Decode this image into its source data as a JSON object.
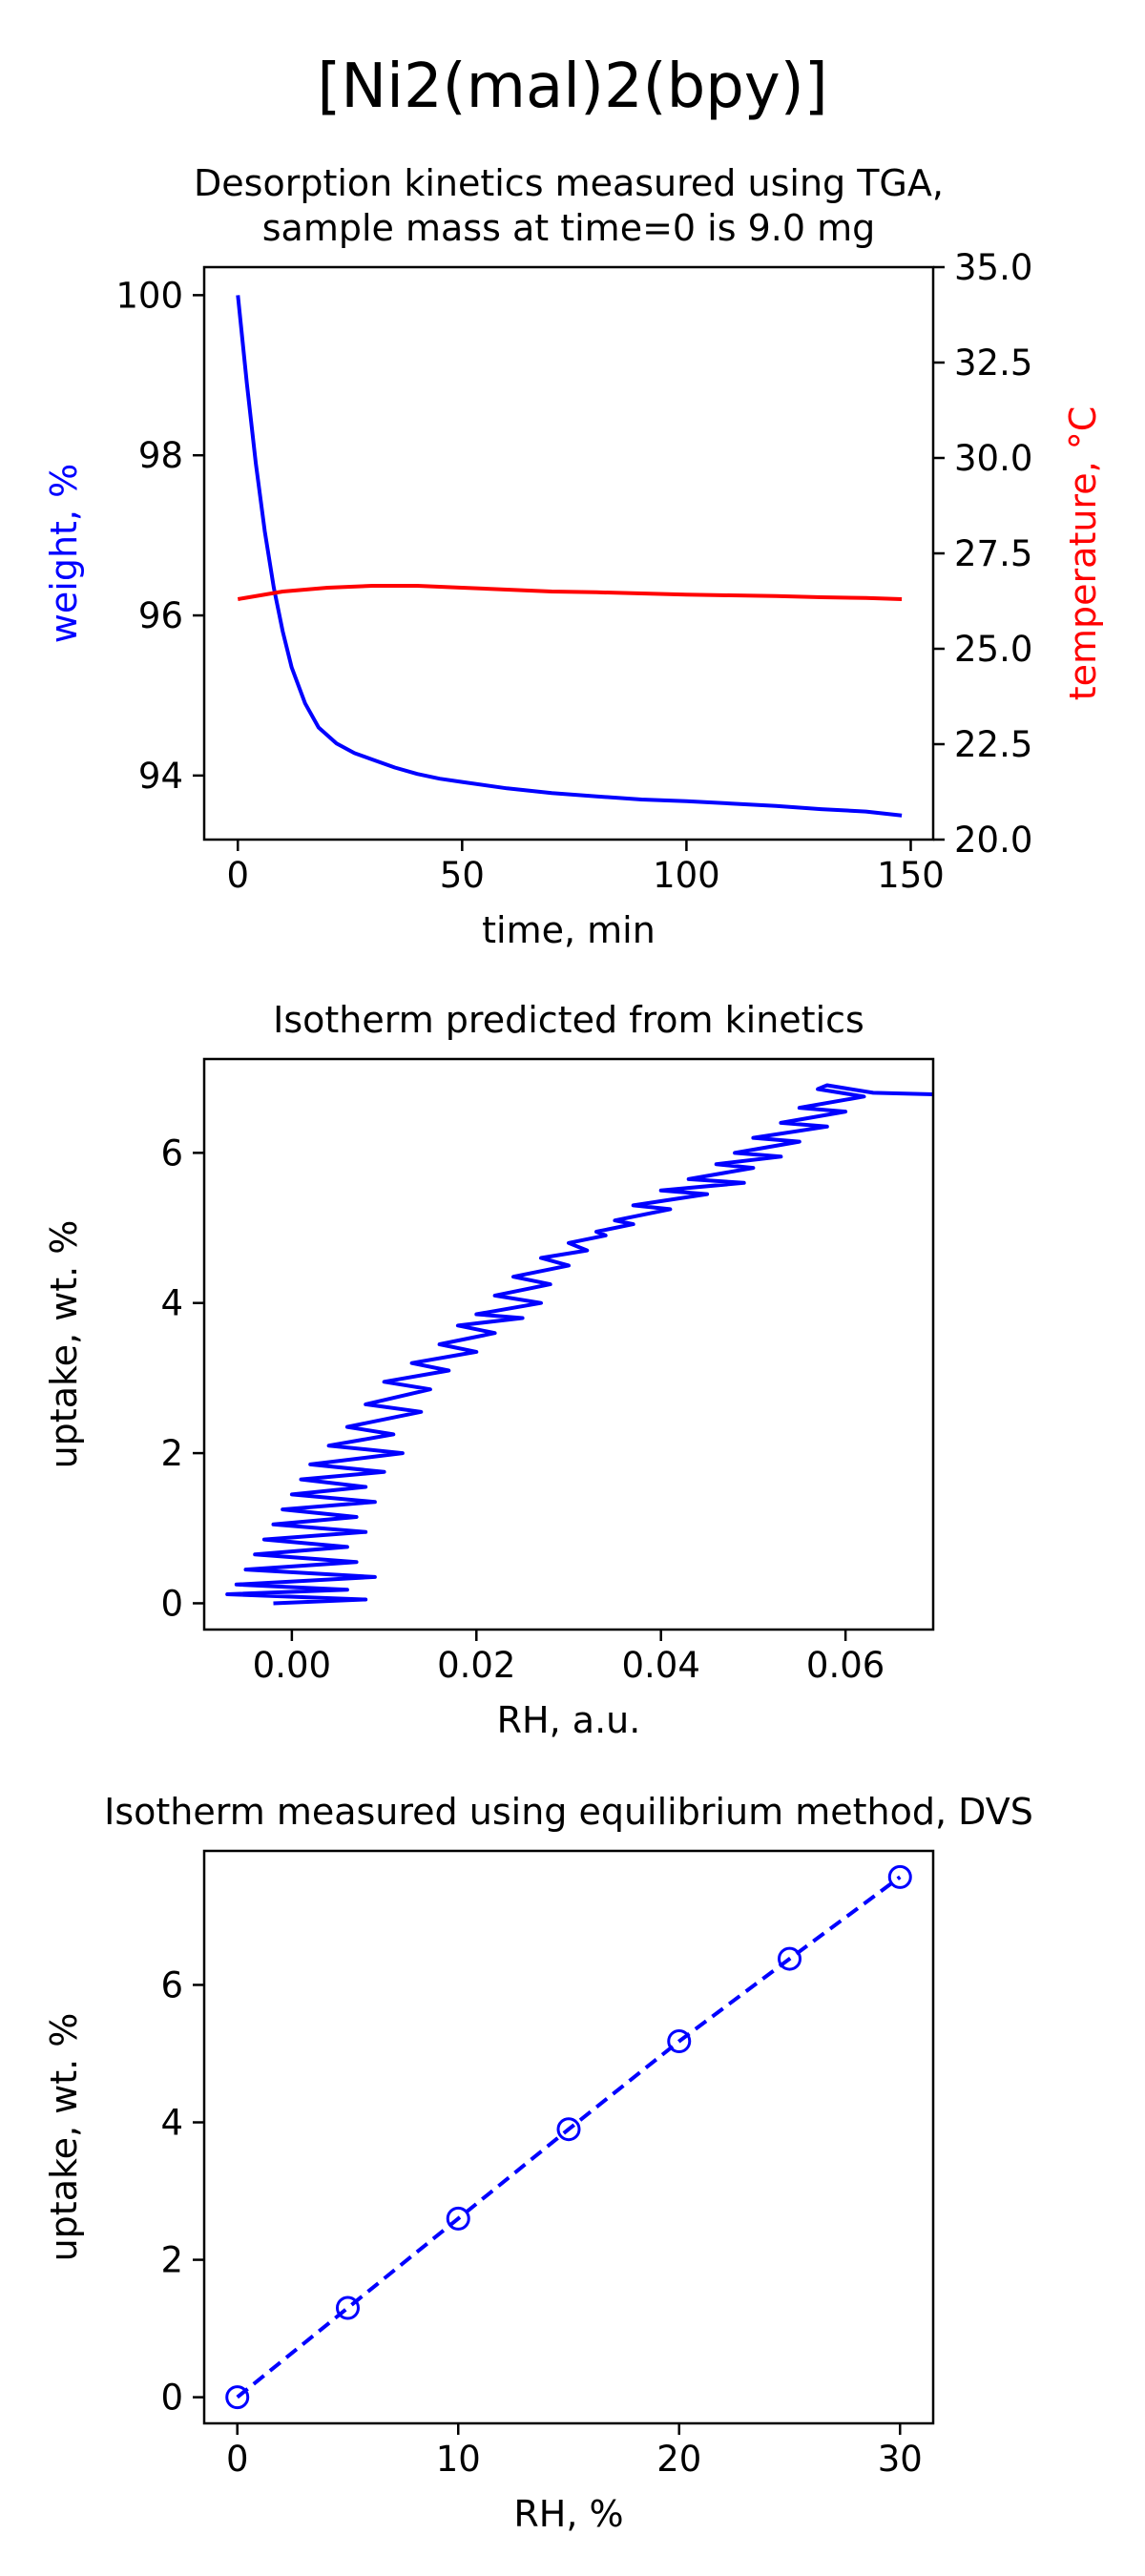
{
  "figure": {
    "title": "[Ni2(mal)2(bpy)]"
  },
  "colors": {
    "blue": "#0000ff",
    "red": "#ff0000",
    "axis": "#000000"
  },
  "chart_data": [
    {
      "type": "line",
      "title": "Desorption kinetics measured using TGA,\nsample mass at time=0 is 9.0 mg",
      "title_lines": [
        "Desorption kinetics measured using TGA,",
        "sample mass at time=0 is 9.0 mg"
      ],
      "xlabel": "time, min",
      "ylabel": "weight, %",
      "ylabel_right": "temperature, °C",
      "xlim": [
        -7.5,
        155
      ],
      "ylim": [
        93.2,
        100.35
      ],
      "ylim_right": [
        20.0,
        35.0
      ],
      "xticks": [
        0,
        50,
        100,
        150
      ],
      "xtick_labels": [
        "0",
        "50",
        "100",
        "150"
      ],
      "yticks": [
        94,
        96,
        98,
        100
      ],
      "ytick_labels": [
        "94",
        "96",
        "98",
        "100"
      ],
      "yticks_right": [
        20.0,
        22.5,
        25.0,
        27.5,
        30.0,
        32.5,
        35.0
      ],
      "ytick_labels_right": [
        "20.0",
        "22.5",
        "25.0",
        "27.5",
        "30.0",
        "32.5",
        "35.0"
      ],
      "grid": false,
      "series": [
        {
          "axis": "left",
          "color": "#0000ff",
          "x": [
            0,
            2,
            4,
            6,
            8,
            10,
            12,
            15,
            18,
            22,
            26,
            30,
            35,
            40,
            45,
            50,
            60,
            70,
            80,
            90,
            100,
            110,
            120,
            130,
            140,
            148
          ],
          "y": [
            100.0,
            98.9,
            97.9,
            97.05,
            96.35,
            95.8,
            95.35,
            94.9,
            94.6,
            94.4,
            94.28,
            94.2,
            94.1,
            94.02,
            93.96,
            93.92,
            93.84,
            93.78,
            93.74,
            93.7,
            93.68,
            93.65,
            93.62,
            93.58,
            93.55,
            93.5
          ]
        },
        {
          "axis": "right",
          "color": "#ff0000",
          "x": [
            0,
            5,
            10,
            20,
            30,
            40,
            50,
            60,
            70,
            80,
            90,
            100,
            110,
            120,
            130,
            140,
            148
          ],
          "y": [
            26.3,
            26.4,
            26.5,
            26.6,
            26.65,
            26.65,
            26.6,
            26.55,
            26.5,
            26.48,
            26.45,
            26.42,
            26.4,
            26.38,
            26.35,
            26.33,
            26.3
          ]
        }
      ]
    },
    {
      "type": "line",
      "title": "Isotherm predicted from kinetics",
      "xlabel": "RH, a.u.",
      "ylabel": "uptake, wt. %",
      "xlim": [
        -0.0095,
        0.0695
      ],
      "ylim": [
        -0.35,
        7.25
      ],
      "xticks": [
        0.0,
        0.02,
        0.04,
        0.06
      ],
      "xtick_labels": [
        "0.00",
        "0.02",
        "0.04",
        "0.06"
      ],
      "yticks": [
        0,
        2,
        4,
        6
      ],
      "ytick_labels": [
        "0",
        "2",
        "4",
        "6"
      ],
      "grid": false,
      "series": [
        {
          "color": "#0000ff",
          "x": [
            -0.002,
            0.008,
            -0.007,
            0.006,
            -0.006,
            0.009,
            -0.005,
            0.007,
            -0.004,
            0.006,
            -0.003,
            0.008,
            -0.002,
            0.007,
            -0.001,
            0.009,
            0.0,
            0.008,
            0.001,
            0.01,
            0.002,
            0.012,
            0.004,
            0.011,
            0.006,
            0.014,
            0.008,
            0.015,
            0.01,
            0.017,
            0.013,
            0.02,
            0.016,
            0.022,
            0.018,
            0.025,
            0.02,
            0.027,
            0.022,
            0.028,
            0.024,
            0.03,
            0.027,
            0.032,
            0.03,
            0.034,
            0.033,
            0.037,
            0.035,
            0.041,
            0.037,
            0.045,
            0.04,
            0.049,
            0.043,
            0.05,
            0.046,
            0.053,
            0.048,
            0.055,
            0.05,
            0.058,
            0.053,
            0.06,
            0.055,
            0.062,
            0.057,
            0.058,
            0.063,
            0.0695
          ],
          "y": [
            0.0,
            0.05,
            0.12,
            0.18,
            0.25,
            0.35,
            0.45,
            0.55,
            0.65,
            0.75,
            0.85,
            0.95,
            1.05,
            1.15,
            1.25,
            1.35,
            1.45,
            1.55,
            1.65,
            1.75,
            1.85,
            2.0,
            2.1,
            2.25,
            2.35,
            2.55,
            2.65,
            2.85,
            2.95,
            3.1,
            3.2,
            3.35,
            3.45,
            3.6,
            3.7,
            3.8,
            3.85,
            4.0,
            4.1,
            4.25,
            4.35,
            4.5,
            4.6,
            4.7,
            4.8,
            4.9,
            4.95,
            5.05,
            5.1,
            5.25,
            5.3,
            5.45,
            5.5,
            5.6,
            5.65,
            5.8,
            5.85,
            5.95,
            6.0,
            6.15,
            6.2,
            6.35,
            6.4,
            6.55,
            6.6,
            6.75,
            6.85,
            6.9,
            6.8,
            6.78
          ]
        }
      ]
    },
    {
      "type": "line",
      "title": "Isotherm measured using equilibrium method, DVS",
      "xlabel": "RH, %",
      "ylabel": "uptake, wt. %",
      "xlim": [
        -1.5,
        31.5
      ],
      "ylim": [
        -0.38,
        7.95
      ],
      "xticks": [
        0,
        10,
        20,
        30
      ],
      "xtick_labels": [
        "0",
        "10",
        "20",
        "30"
      ],
      "yticks": [
        0,
        2,
        4,
        6
      ],
      "ytick_labels": [
        "0",
        "2",
        "4",
        "6"
      ],
      "grid": false,
      "marker": "open-circle",
      "linestyle": "dashed",
      "series": [
        {
          "color": "#0000ff",
          "x": [
            0,
            5,
            10,
            15,
            20,
            25,
            30
          ],
          "y": [
            0.0,
            1.3,
            2.6,
            3.9,
            5.18,
            6.38,
            7.57
          ]
        }
      ]
    }
  ]
}
